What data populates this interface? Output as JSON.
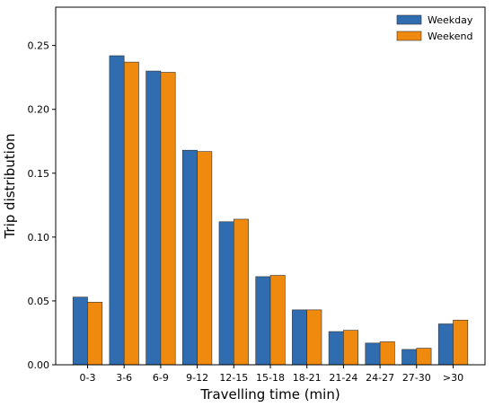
{
  "chart_data": {
    "type": "bar",
    "title": "",
    "xlabel": "Travelling time (min)",
    "ylabel": "Trip distribution",
    "categories": [
      "0-3",
      "3-6",
      "6-9",
      "9-12",
      "12-15",
      "15-18",
      "18-21",
      "21-24",
      "24-27",
      "27-30",
      ">30"
    ],
    "series": [
      {
        "name": "Weekday",
        "color": "#2f6db0",
        "values": [
          0.053,
          0.242,
          0.23,
          0.168,
          0.112,
          0.069,
          0.043,
          0.026,
          0.017,
          0.012,
          0.032
        ]
      },
      {
        "name": "Weekend",
        "color": "#f08a0e",
        "values": [
          0.049,
          0.237,
          0.229,
          0.167,
          0.114,
          0.07,
          0.043,
          0.027,
          0.018,
          0.013,
          0.035
        ]
      }
    ],
    "ylim": [
      0,
      0.28
    ],
    "yticks": [
      0.0,
      0.05,
      0.1,
      0.15,
      0.2,
      0.25
    ],
    "ytick_labels": [
      "0.00",
      "0.05",
      "0.10",
      "0.15",
      "0.20",
      "0.25"
    ],
    "legend_position": "top-right",
    "grid": false
  }
}
